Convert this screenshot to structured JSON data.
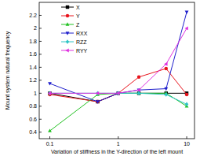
{
  "chart_data": {
    "type": "line",
    "x_label": "Variation of stiffness in the Y-direction of the left mount",
    "y_label": "Mount system natural frequency",
    "x": [
      0.1,
      0.5,
      1,
      2,
      5,
      10
    ],
    "series": [
      {
        "name": "X",
        "color": "#000000",
        "marker": "square",
        "values": [
          1.0,
          0.87,
          1.0,
          1.0,
          1.0,
          1.0
        ]
      },
      {
        "name": "Y",
        "color": "#e8141d",
        "marker": "circle",
        "values": [
          0.98,
          0.87,
          1.0,
          1.25,
          1.38,
          0.98
        ]
      },
      {
        "name": "Z",
        "color": "#22c122",
        "marker": "triangle-up",
        "values": [
          0.42,
          0.98,
          1.0,
          1.0,
          1.0,
          0.8
        ]
      },
      {
        "name": "RXX",
        "color": "#1f1fcc",
        "marker": "triangle-down",
        "values": [
          1.15,
          0.87,
          1.0,
          1.05,
          1.07,
          2.25
        ]
      },
      {
        "name": "RZZ",
        "color": "#2ec4c4",
        "marker": "diamond",
        "values": [
          1.0,
          1.0,
          1.0,
          1.0,
          0.98,
          0.83
        ]
      },
      {
        "name": "RYY",
        "color": "#e030e0",
        "marker": "triangle-left",
        "values": [
          1.0,
          1.0,
          1.0,
          1.05,
          1.45,
          2.0
        ]
      }
    ],
    "log": "x",
    "xlim": [
      0.07,
      13
    ],
    "xticks": [
      0.1,
      1,
      10
    ],
    "ylim": [
      0.3,
      2.4
    ],
    "yticks": [
      0.4,
      0.6,
      0.8,
      1,
      1.2,
      1.4,
      1.6,
      1.8,
      2,
      2.2
    ],
    "grid": false,
    "legend": "upper left"
  }
}
